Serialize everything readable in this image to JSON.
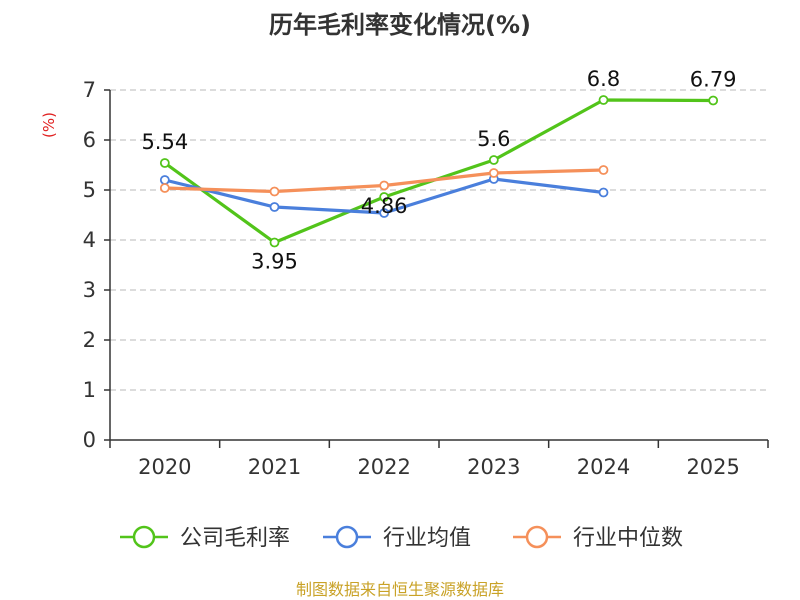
{
  "chart_data": {
    "type": "line",
    "title": "历年毛利率变化情况(%)",
    "ylabel": "(%)",
    "xlabel": "",
    "categories": [
      "2020",
      "2021",
      "2022",
      "2023",
      "2024",
      "2025"
    ],
    "ylim": [
      0,
      7
    ],
    "yticks": [
      0,
      1,
      2,
      3,
      4,
      5,
      6,
      7
    ],
    "grid": true,
    "legend_position": "bottom",
    "series": [
      {
        "name": "公司毛利率",
        "color": "#52c41a",
        "values": [
          5.54,
          3.95,
          4.86,
          5.6,
          6.8,
          6.79
        ],
        "labels": [
          "5.54",
          "3.95",
          "4.86",
          "5.6",
          "6.8",
          "6.79"
        ]
      },
      {
        "name": "行业均值",
        "color": "#4a7fdc",
        "values": [
          5.2,
          4.66,
          4.54,
          5.22,
          4.95,
          null
        ],
        "labels": []
      },
      {
        "name": "行业中位数",
        "color": "#f5905a",
        "values": [
          5.04,
          4.97,
          5.09,
          5.34,
          5.4,
          null
        ],
        "labels": []
      }
    ]
  },
  "source": {
    "text": "制图数据来自恒生聚源数据库",
    "color": "#c9a227"
  },
  "colors": {
    "ylabel": "#e02020",
    "grid": "#c8c8c8",
    "axis": "#333333"
  }
}
